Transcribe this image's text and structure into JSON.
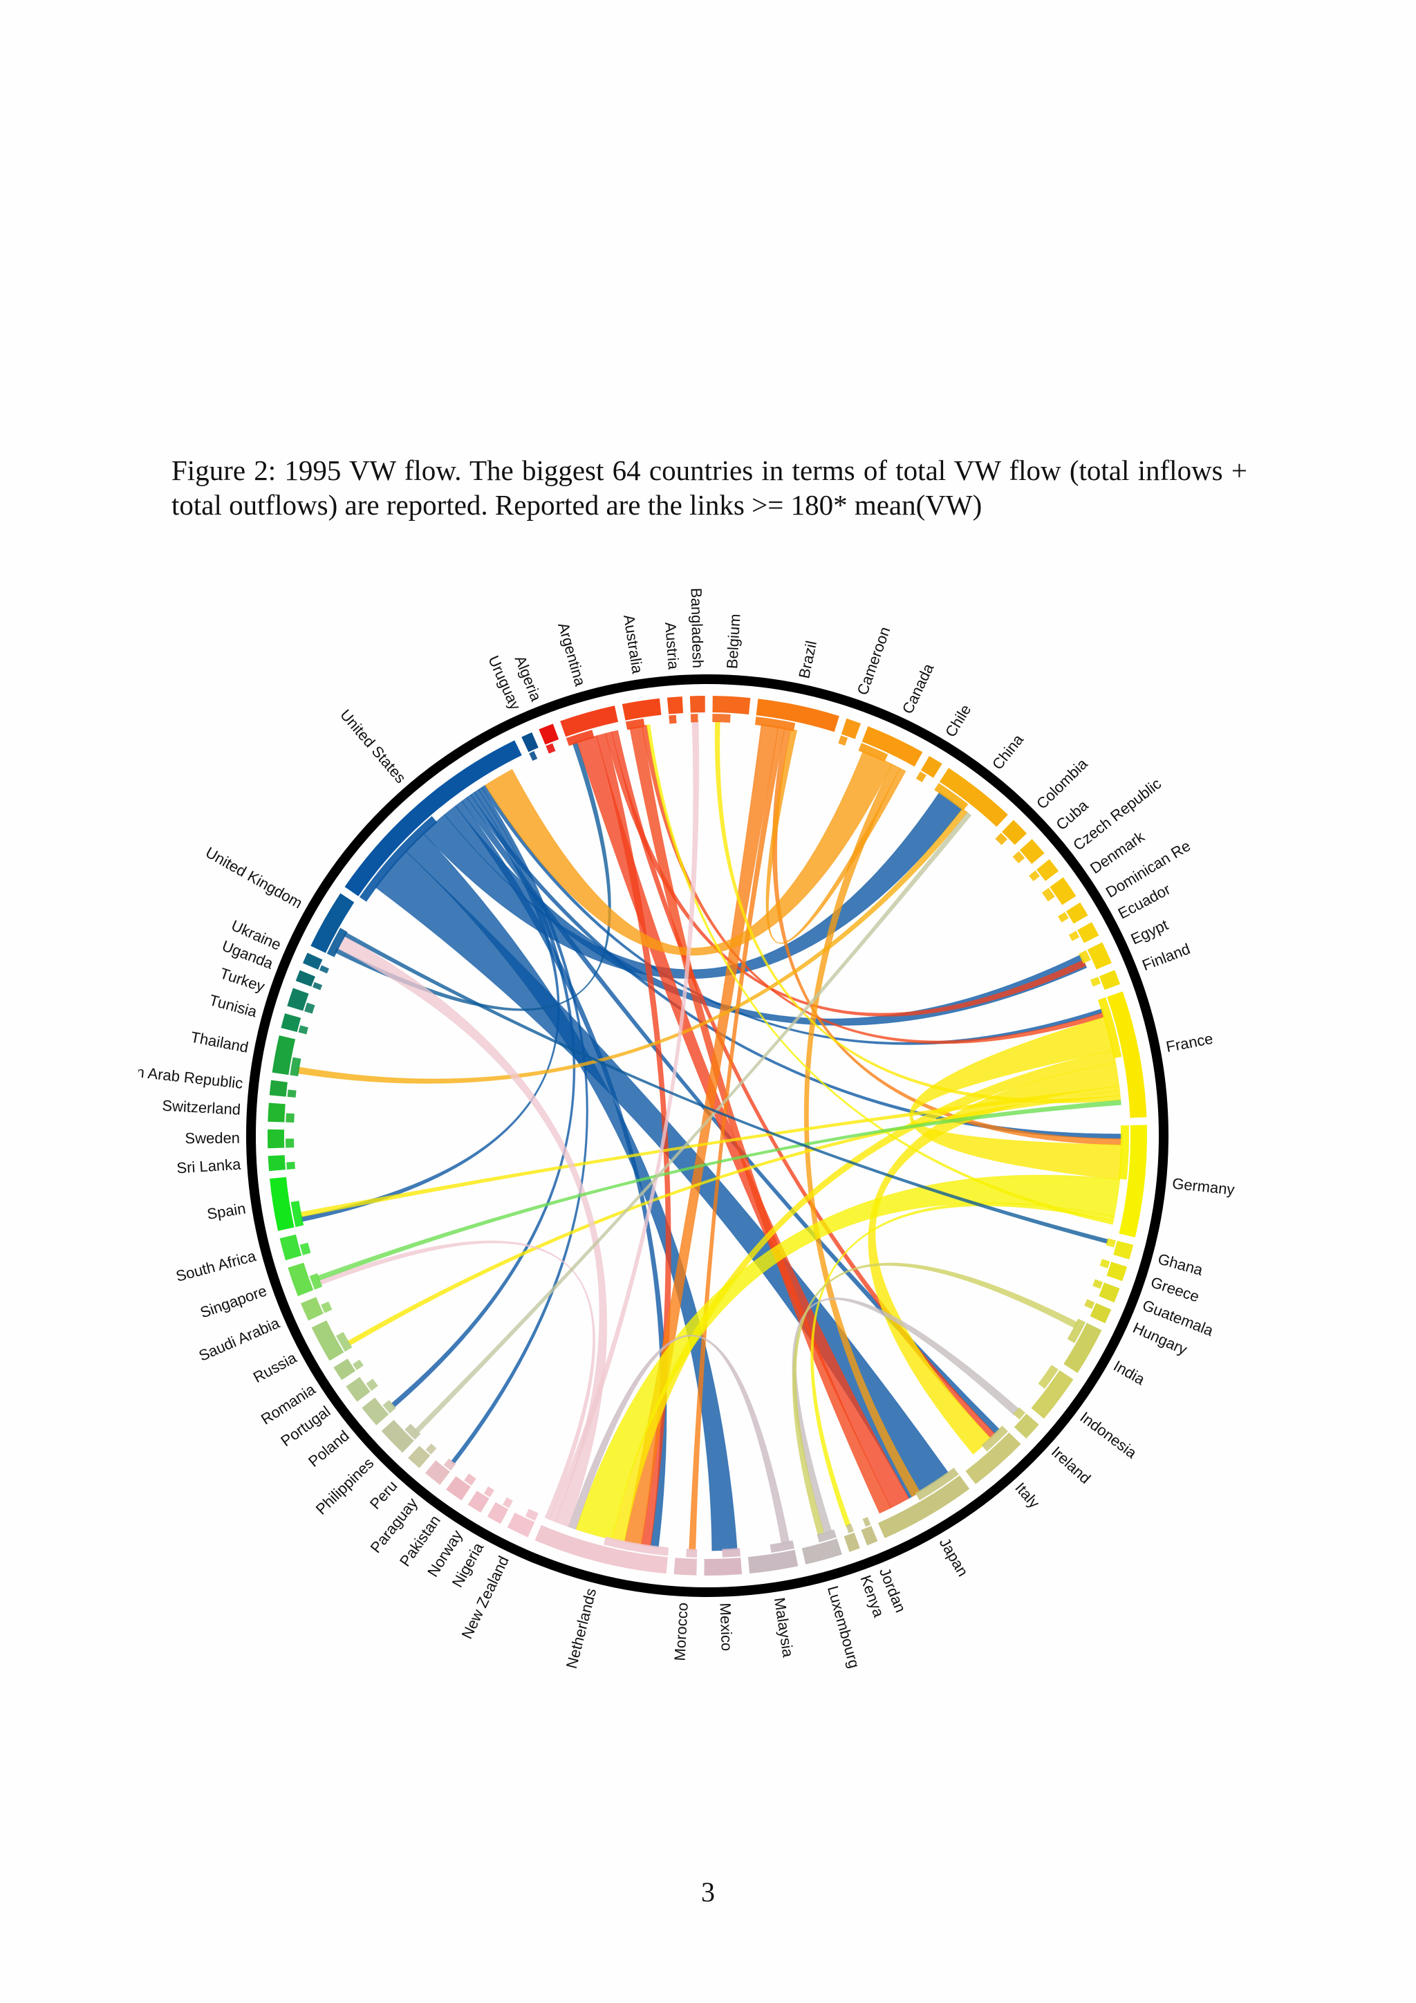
{
  "caption": "Figure 2:  1995 VW flow.  The biggest 64 countries in terms of total VW flow (total inflows + total outflows) are reported. Reported are the links >= 180* mean(VW)",
  "page_number": "3",
  "chart_data": {
    "type": "chord",
    "title": "",
    "countries": [
      {
        "name": "Uruguay",
        "color": "#0a4f8f",
        "share": 0.3
      },
      {
        "name": "Algeria",
        "color": "#e8120e",
        "share": 0.4
      },
      {
        "name": "Argentina",
        "color": "#f2401c",
        "share": 1.5
      },
      {
        "name": "Australia",
        "color": "#f44719",
        "share": 1.0
      },
      {
        "name": "Austria",
        "color": "#f4541b",
        "share": 0.4
      },
      {
        "name": "Bangladesh",
        "color": "#f35e20",
        "share": 0.4
      },
      {
        "name": "Belgium",
        "color": "#f56a1d",
        "share": 1.0
      },
      {
        "name": "Brazil",
        "color": "#f87c12",
        "share": 2.2
      },
      {
        "name": "Cameroon",
        "color": "#f89a15",
        "share": 0.4
      },
      {
        "name": "Canada",
        "color": "#f99c10",
        "share": 1.6
      },
      {
        "name": "Chile",
        "color": "#f6a70f",
        "share": 0.4
      },
      {
        "name": "China",
        "color": "#f7ad0e",
        "share": 2.0
      },
      {
        "name": "Colombia",
        "color": "#f5b50a",
        "share": 0.5
      },
      {
        "name": "Cuba",
        "color": "#f7be0e",
        "share": 0.5
      },
      {
        "name": "Czech Republic",
        "color": "#f7c510",
        "share": 0.4
      },
      {
        "name": "Denmark",
        "color": "#f8c80c",
        "share": 0.6
      },
      {
        "name": "Dominican Republic",
        "color": "#f7cc0c",
        "share": 0.4
      },
      {
        "name": "Ecuador",
        "color": "#f7d20e",
        "share": 0.4
      },
      {
        "name": "Egypt",
        "color": "#f6d70c",
        "share": 0.6
      },
      {
        "name": "Finland",
        "color": "#f4de0d",
        "share": 0.4
      },
      {
        "name": "France",
        "color": "#fbe900",
        "share": 3.4
      },
      {
        "name": "Germany",
        "color": "#f7f200",
        "share": 3.0
      },
      {
        "name": "Ghana",
        "color": "#efe81a",
        "share": 0.4
      },
      {
        "name": "Greece",
        "color": "#e9e31a",
        "share": 0.4
      },
      {
        "name": "Guatemala",
        "color": "#dfdd2a",
        "share": 0.4
      },
      {
        "name": "Hungary",
        "color": "#d9d738",
        "share": 0.4
      },
      {
        "name": "India",
        "color": "#cdd060",
        "share": 1.3
      },
      {
        "name": "Indonesia",
        "color": "#d1d166",
        "share": 1.3
      },
      {
        "name": "Ireland",
        "color": "#cdce70",
        "share": 0.5
      },
      {
        "name": "Italy",
        "color": "#ccc97a",
        "share": 1.6
      },
      {
        "name": "Japan",
        "color": "#c8c580",
        "share": 2.6
      },
      {
        "name": "Jordan",
        "color": "#c7c38a",
        "share": 0.3
      },
      {
        "name": "Kenya",
        "color": "#c8c38c",
        "share": 0.3
      },
      {
        "name": "Luxembourg",
        "color": "#c5bcbc",
        "share": 1.0
      },
      {
        "name": "Malaysia",
        "color": "#c9b9c0",
        "share": 1.3
      },
      {
        "name": "Mexico",
        "color": "#d9b8c4",
        "share": 1.0
      },
      {
        "name": "Morocco",
        "color": "#e6c1c9",
        "share": 0.6
      },
      {
        "name": "Netherlands",
        "color": "#f0c8d0",
        "share": 3.6
      },
      {
        "name": "New Zealand",
        "color": "#f3c5cf",
        "share": 0.6
      },
      {
        "name": "Nigeria",
        "color": "#f2c3cb",
        "share": 0.4
      },
      {
        "name": "Norway",
        "color": "#f0bfc7",
        "share": 0.4
      },
      {
        "name": "Pakistan",
        "color": "#eebac2",
        "share": 0.5
      },
      {
        "name": "Paraguay",
        "color": "#e8c0c4",
        "share": 0.5
      },
      {
        "name": "Peru",
        "color": "#c9c9a2",
        "share": 0.4
      },
      {
        "name": "Philippines",
        "color": "#c2c7a0",
        "share": 0.8
      },
      {
        "name": "Poland",
        "color": "#bccb98",
        "share": 0.6
      },
      {
        "name": "Portugal",
        "color": "#b7cc90",
        "share": 0.5
      },
      {
        "name": "Romania",
        "color": "#b0cd88",
        "share": 0.4
      },
      {
        "name": "Russia",
        "color": "#a5d07c",
        "share": 1.0
      },
      {
        "name": "Saudi Arabia",
        "color": "#98d66e",
        "share": 0.5
      },
      {
        "name": "Singapore",
        "color": "#6ade4e",
        "share": 0.8
      },
      {
        "name": "South Africa",
        "color": "#3fe13a",
        "share": 0.6
      },
      {
        "name": "Spain",
        "color": "#13e61b",
        "share": 1.4
      },
      {
        "name": "Sri Lanka",
        "color": "#1fd02a",
        "share": 0.4
      },
      {
        "name": "Sweden",
        "color": "#23c22c",
        "share": 0.5
      },
      {
        "name": "Switzerland",
        "color": "#23b72f",
        "share": 0.5
      },
      {
        "name": "Syrian Arab Republic",
        "color": "#20a63a",
        "share": 0.4
      },
      {
        "name": "Thailand",
        "color": "#1ca43e",
        "share": 1.0
      },
      {
        "name": "Tunisia",
        "color": "#148f54",
        "share": 0.4
      },
      {
        "name": "Turkey",
        "color": "#127f60",
        "share": 0.5
      },
      {
        "name": "Uganda",
        "color": "#0f6f6f",
        "share": 0.3
      },
      {
        "name": "Ukraine",
        "color": "#0e6684",
        "share": 0.3
      },
      {
        "name": "United Kingdom",
        "color": "#0b5a99",
        "share": 1.6
      },
      {
        "name": "United States",
        "color": "#0a56a3",
        "share": 6.0
      }
    ],
    "display_labels": {
      "Dominican Republic": "Dominican Re"
    },
    "links": [
      {
        "from": "United States",
        "to": "Japan",
        "weight": 3.0
      },
      {
        "from": "United States",
        "to": "Mexico",
        "weight": 1.6
      },
      {
        "from": "United States",
        "to": "China",
        "weight": 1.8
      },
      {
        "from": "United States",
        "to": "Egypt",
        "weight": 0.9
      },
      {
        "from": "United States",
        "to": "Netherlands",
        "weight": 0.5
      },
      {
        "from": "United States",
        "to": "Italy",
        "weight": 0.4
      },
      {
        "from": "United States",
        "to": "Germany",
        "weight": 0.3
      },
      {
        "from": "United States",
        "to": "Spain",
        "weight": 0.3
      },
      {
        "from": "United States",
        "to": "Poland",
        "weight": 0.3
      },
      {
        "from": "United States",
        "to": "Paraguay",
        "weight": 0.25
      },
      {
        "from": "United States",
        "to": "France",
        "weight": 0.25
      },
      {
        "from": "United Kingdom",
        "to": "Argentina",
        "weight": 0.3
      },
      {
        "from": "Argentina",
        "to": "Japan",
        "weight": 1.3
      },
      {
        "from": "Argentina",
        "to": "Netherlands",
        "weight": 0.6
      },
      {
        "from": "Argentina",
        "to": "Egypt",
        "weight": 0.4
      },
      {
        "from": "Argentina",
        "to": "Italy",
        "weight": 0.4
      },
      {
        "from": "Australia",
        "to": "Japan",
        "weight": 0.8
      },
      {
        "from": "Australia",
        "to": "France",
        "weight": 0.3
      },
      {
        "from": "Brazil",
        "to": "Netherlands",
        "weight": 1.1
      },
      {
        "from": "Brazil",
        "to": "Morocco",
        "weight": 0.4
      },
      {
        "from": "Brazil",
        "to": "Germany",
        "weight": 0.4
      },
      {
        "from": "Canada",
        "to": "United States",
        "weight": 2.0
      },
      {
        "from": "Canada",
        "to": "Japan",
        "weight": 0.6
      },
      {
        "from": "Canada",
        "to": "Brazil",
        "weight": 0.4
      },
      {
        "from": "China",
        "to": "Thailand",
        "weight": 0.4
      },
      {
        "from": "France",
        "to": "Germany",
        "weight": 2.2
      },
      {
        "from": "France",
        "to": "Netherlands",
        "weight": 0.8
      },
      {
        "from": "France",
        "to": "Italy",
        "weight": 1.5
      },
      {
        "from": "France",
        "to": "Spain",
        "weight": 0.3
      },
      {
        "from": "France",
        "to": "Russia",
        "weight": 0.3
      },
      {
        "from": "France",
        "to": "Belgium",
        "weight": 0.3
      },
      {
        "from": "Germany",
        "to": "Netherlands",
        "weight": 2.4
      },
      {
        "from": "Germany",
        "to": "Kenya",
        "weight": 0.3
      },
      {
        "from": "Germany",
        "to": "Australia",
        "weight": 0.2
      },
      {
        "from": "Malaysia",
        "to": "Netherlands",
        "weight": 0.5
      },
      {
        "from": "Luxembourg",
        "to": "Ireland",
        "weight": 0.5
      },
      {
        "from": "India",
        "to": "Luxembourg",
        "weight": 0.4
      },
      {
        "from": "Netherlands",
        "to": "United Kingdom",
        "weight": 0.9
      },
      {
        "from": "Netherlands",
        "to": "Bangladesh",
        "weight": 0.4
      },
      {
        "from": "Netherlands",
        "to": "Singapore",
        "weight": 0.3
      },
      {
        "from": "Singapore",
        "to": "France",
        "weight": 0.3
      },
      {
        "from": "Philippines",
        "to": "China",
        "weight": 0.3
      },
      {
        "from": "United Kingdom",
        "to": "Ghana",
        "weight": 0.25
      }
    ]
  }
}
